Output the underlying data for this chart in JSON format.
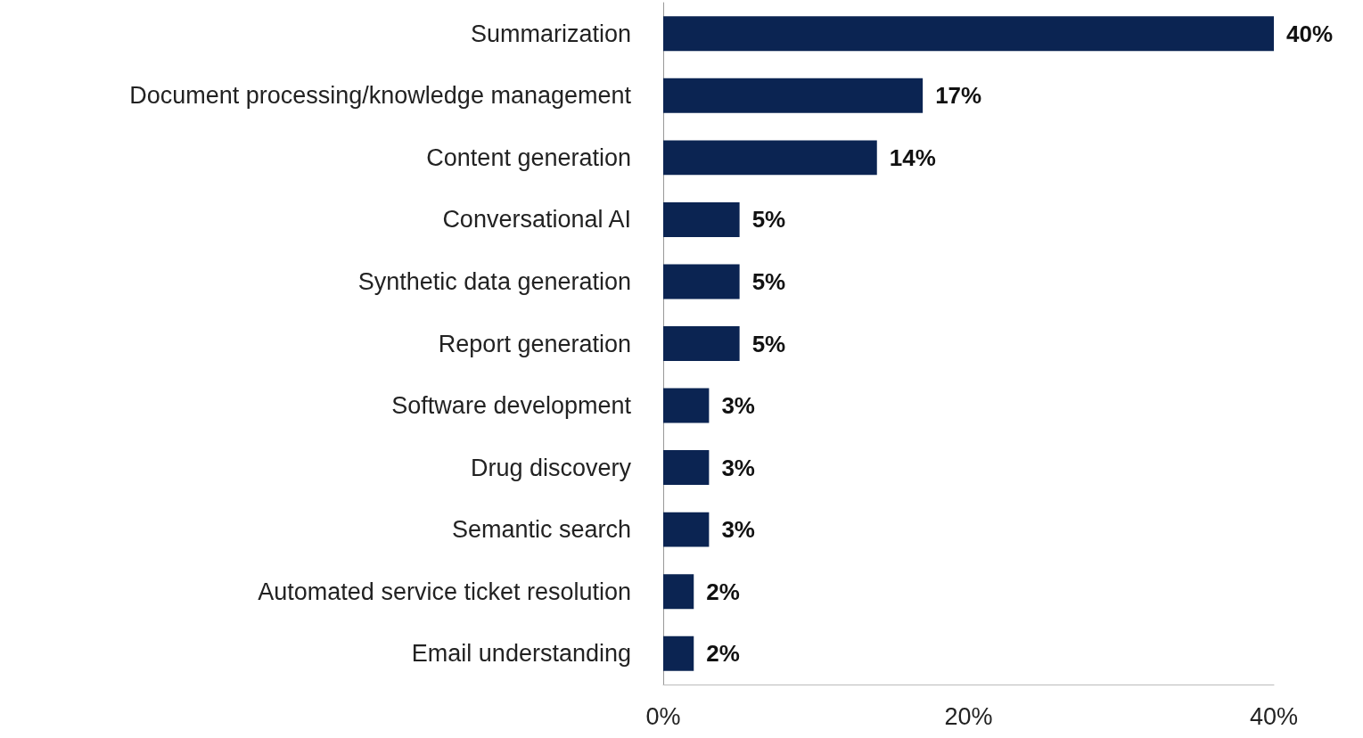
{
  "chart_data": {
    "type": "bar",
    "orientation": "horizontal",
    "categories": [
      "Summarization",
      "Document processing/knowledge management",
      "Content generation",
      "Conversational AI",
      "Synthetic data generation",
      "Report generation",
      "Software development",
      "Drug discovery",
      "Semantic search",
      "Automated service ticket resolution",
      "Email understanding"
    ],
    "values": [
      40,
      17,
      14,
      5,
      5,
      5,
      3,
      3,
      3,
      2,
      2
    ],
    "value_labels": [
      "40%",
      "17%",
      "14%",
      "5%",
      "5%",
      "5%",
      "3%",
      "3%",
      "3%",
      "2%",
      "2%"
    ],
    "color": "#0b2452",
    "xlim": [
      0,
      40
    ],
    "xticks": [
      {
        "value": 0,
        "label": "0%"
      },
      {
        "value": 20,
        "label": "20%"
      },
      {
        "value": 40,
        "label": "40%"
      }
    ],
    "grid": false
  }
}
